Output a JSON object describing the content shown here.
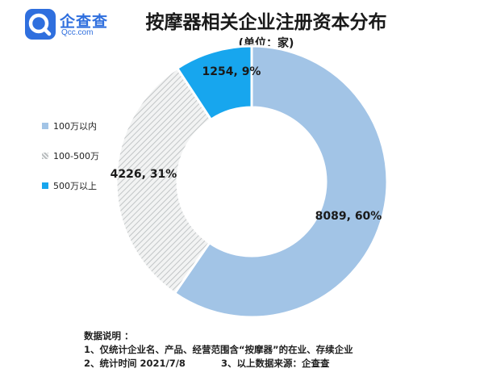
{
  "brand": {
    "name": "企查查",
    "domain": "Qcc.com",
    "color": "#2f6fde"
  },
  "chart_data": {
    "type": "pie",
    "title": "按摩器相关企业注册资本分布",
    "subtitle": "(单位：家)",
    "donut": true,
    "legend_position": "left",
    "slices": [
      {
        "name": "100万以内",
        "value": 8089,
        "label": "8089, 60%",
        "color": "#a2c4e6",
        "pattern": "solid"
      },
      {
        "name": "100-500万",
        "value": 4226,
        "label": "4226, 31%",
        "color": "#c8ccce",
        "pattern": "hatch"
      },
      {
        "name": "500万以上",
        "value": 1254,
        "label": "1254, 9%",
        "color": "#17a6ee",
        "pattern": "solid"
      }
    ]
  },
  "notes": {
    "heading": "数据说明 ：",
    "line1": "1、仅统计企业名、产品、经营范围含“按摩器”的在业、存续企业",
    "line2_a": "2、统计时间  2021/7/8",
    "line2_b": "3、以上数据来源：企查查"
  }
}
